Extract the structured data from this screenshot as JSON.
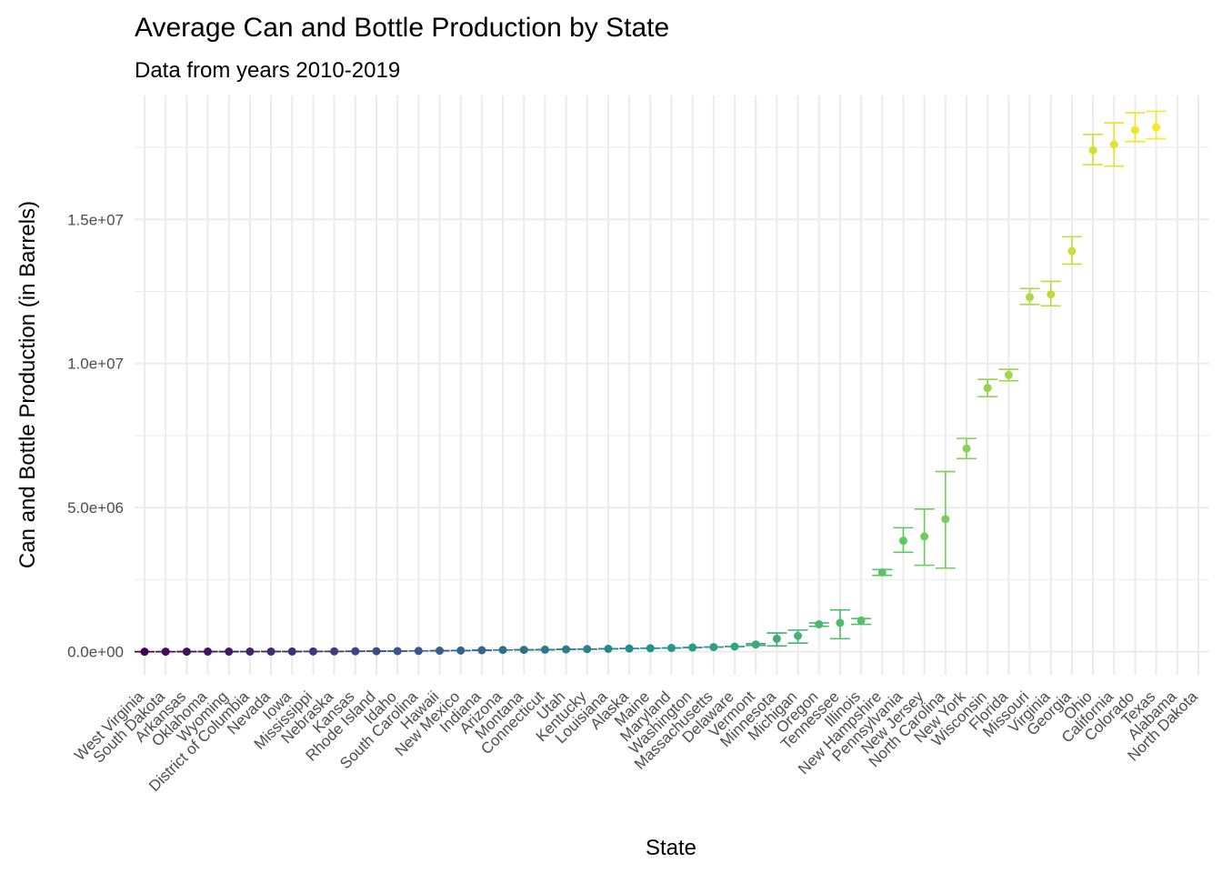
{
  "chart_data": {
    "type": "scatter",
    "title": "Average Can and Bottle Production by State",
    "subtitle": "Data from years 2010-2019",
    "xlabel": "State",
    "ylabel": "Can and Bottle Production (in Barrels)",
    "ylim": [
      -800000,
      19300000
    ],
    "yticks": [
      0,
      5000000,
      10000000,
      15000000
    ],
    "ytick_labels": [
      "0.0e+00",
      "5.0e+06",
      "1.0e+07",
      "1.5e+07"
    ],
    "grid": true,
    "error_bars": true,
    "color_scale": "viridis",
    "colors": [
      "#440154",
      "#31688e",
      "#21908c",
      "#35b779",
      "#fde725"
    ],
    "categories": [
      "West Virginia",
      "South Dakota",
      "Arkansas",
      "Oklahoma",
      "Wyoming",
      "District of Columbia",
      "Nevada",
      "Iowa",
      "Mississippi",
      "Nebraska",
      "Kansas",
      "Rhode Island",
      "Idaho",
      "South Carolina",
      "Hawaii",
      "New Mexico",
      "Indiana",
      "Arizona",
      "Montana",
      "Connecticut",
      "Utah",
      "Kentucky",
      "Louisiana",
      "Alaska",
      "Maine",
      "Maryland",
      "Washington",
      "Massachusetts",
      "Delaware",
      "Vermont",
      "Minnesota",
      "Michigan",
      "Oregon",
      "Tennessee",
      "Illinois",
      "New Hampshire",
      "Pennsylvania",
      "New Jersey",
      "North Carolina",
      "New York",
      "Wisconsin",
      "Florida",
      "Missouri",
      "Virginia",
      "Georgia",
      "Ohio",
      "California",
      "Colorado",
      "Texas",
      "Alabama",
      "North Dakota"
    ],
    "values": [
      0,
      1000,
      2000,
      3000,
      4000,
      5000,
      6000,
      8000,
      10000,
      12000,
      15000,
      18000,
      22000,
      28000,
      35000,
      40000,
      50000,
      60000,
      65000,
      70000,
      80000,
      90000,
      100000,
      110000,
      120000,
      130000,
      145000,
      160000,
      180000,
      250000,
      450000,
      550000,
      950000,
      1000000,
      1080000,
      2750000,
      3850000,
      4000000,
      4600000,
      7050000,
      9150000,
      9600000,
      12300000,
      12400000,
      13900000,
      17400000,
      17600000,
      18100000,
      18200000,
      null,
      null
    ],
    "lower": [
      0,
      1000,
      2000,
      3000,
      4000,
      5000,
      6000,
      8000,
      10000,
      12000,
      15000,
      18000,
      22000,
      28000,
      35000,
      40000,
      50000,
      60000,
      65000,
      70000,
      80000,
      90000,
      100000,
      110000,
      120000,
      130000,
      145000,
      160000,
      180000,
      220000,
      200000,
      300000,
      880000,
      450000,
      950000,
      2650000,
      3450000,
      3000000,
      2900000,
      6700000,
      8850000,
      9400000,
      12050000,
      12000000,
      13450000,
      16900000,
      16850000,
      17700000,
      17800000,
      null,
      null
    ],
    "upper": [
      0,
      1000,
      2000,
      3000,
      4000,
      5000,
      6000,
      8000,
      10000,
      12000,
      15000,
      18000,
      22000,
      28000,
      35000,
      40000,
      50000,
      60000,
      65000,
      70000,
      80000,
      90000,
      100000,
      110000,
      120000,
      130000,
      145000,
      160000,
      180000,
      280000,
      650000,
      750000,
      1000000,
      1450000,
      1150000,
      2850000,
      4300000,
      4950000,
      6250000,
      7400000,
      9450000,
      9800000,
      12600000,
      12850000,
      14400000,
      17950000,
      18350000,
      18700000,
      18750000,
      null,
      null
    ]
  }
}
